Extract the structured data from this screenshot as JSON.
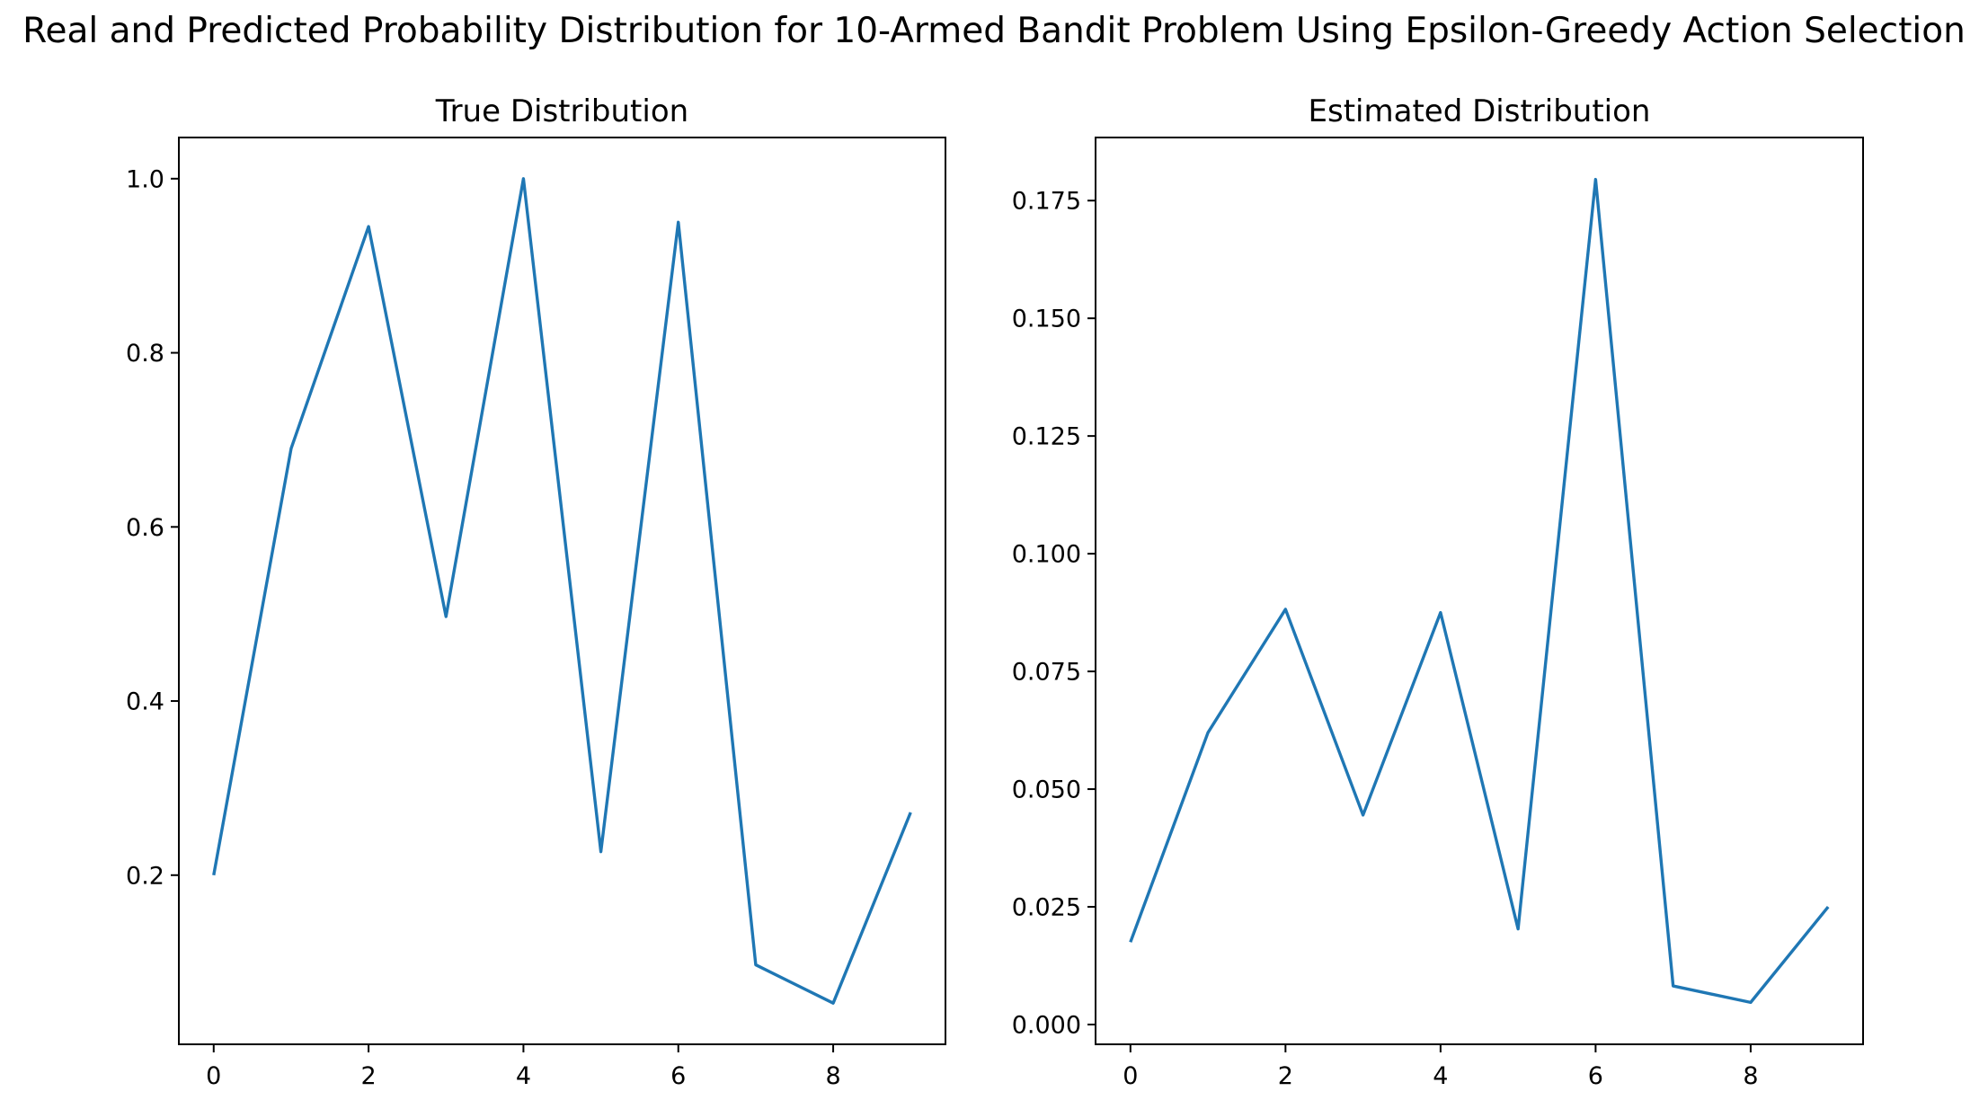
{
  "title": "Real and Predicted Probability Distribution for 10-Armed Bandit Problem Using Epsilon-Greedy Action Selection",
  "line_color": "#1f77b4",
  "chart_data": [
    {
      "type": "line",
      "title": "True Distribution",
      "xlabel": "",
      "ylabel": "",
      "x": [
        0,
        1,
        2,
        3,
        4,
        5,
        6,
        7,
        8,
        9
      ],
      "series": [
        {
          "values": [
            0.2,
            0.69,
            0.945,
            0.497,
            1.0,
            0.227,
            0.95,
            0.097,
            0.053,
            0.272
          ]
        }
      ],
      "xlim": [
        -0.45,
        9.45
      ],
      "ylim": [
        0.0057,
        1.0473
      ],
      "xticks": [
        0,
        2,
        4,
        6,
        8
      ],
      "xtick_labels": [
        "0",
        "2",
        "4",
        "6",
        "8"
      ],
      "yticks": [
        0.2,
        0.4,
        0.6,
        0.8,
        1.0
      ],
      "ytick_labels": [
        "0.2",
        "0.4",
        "0.6",
        "0.8",
        "1.0"
      ],
      "grid": false,
      "legend": "none"
    },
    {
      "type": "line",
      "title": "Estimated Distribution",
      "xlabel": "",
      "ylabel": "",
      "x": [
        0,
        1,
        2,
        3,
        4,
        5,
        6,
        7,
        8,
        9
      ],
      "series": [
        {
          "values": [
            0.0175,
            0.062,
            0.0882,
            0.0445,
            0.0875,
            0.0203,
            0.1795,
            0.0082,
            0.0047,
            0.025
          ]
        }
      ],
      "xlim": [
        -0.45,
        9.45
      ],
      "ylim": [
        -0.0042,
        0.1884
      ],
      "xticks": [
        0,
        2,
        4,
        6,
        8
      ],
      "xtick_labels": [
        "0",
        "2",
        "4",
        "6",
        "8"
      ],
      "yticks": [
        0.0,
        0.025,
        0.05,
        0.075,
        0.1,
        0.125,
        0.15,
        0.175
      ],
      "ytick_labels": [
        "0.000",
        "0.025",
        "0.050",
        "0.075",
        "0.100",
        "0.125",
        "0.150",
        "0.175"
      ],
      "grid": false,
      "legend": "none"
    }
  ]
}
